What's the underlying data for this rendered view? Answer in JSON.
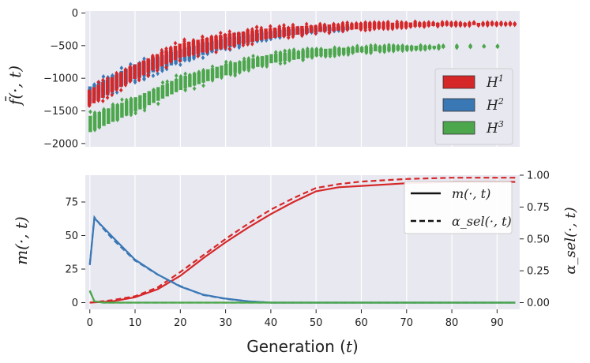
{
  "colors": {
    "h1": "#d62728",
    "h2": "#3a78b5",
    "h3": "#4ca64c",
    "panel_bg": "#e8e8f1",
    "grid": "#ffffff"
  },
  "chart_data": [
    {
      "type": "scatter",
      "subtype": "box-strip per generation",
      "ylabel": "f̄(·, t)",
      "ylim": [
        -2050,
        30
      ],
      "yticks": [
        0,
        -500,
        -1000,
        -1500,
        -2000
      ],
      "ytick_labels": [
        "0",
        "−500",
        "−1000",
        "−1500",
        "−2000"
      ],
      "xlim": [
        -1,
        95
      ],
      "legend": {
        "placement": "right",
        "entries": [
          "H1",
          "H2",
          "H3"
        ]
      },
      "series": [
        {
          "name": "H1",
          "label_main": "H",
          "label_sup": "1",
          "x": [
            0,
            10,
            20,
            30,
            40,
            50,
            60,
            70,
            80,
            90,
            94
          ],
          "median": [
            -1300,
            -900,
            -580,
            -420,
            -310,
            -240,
            -200,
            -180,
            -170,
            -165,
            -165
          ],
          "spread": [
            250,
            220,
            220,
            200,
            160,
            110,
            90,
            70,
            40,
            30,
            20
          ]
        },
        {
          "name": "H2",
          "label_main": "H",
          "label_sup": "2",
          "x": [
            0,
            10,
            20,
            30,
            40,
            50,
            57
          ],
          "median": [
            -1250,
            -900,
            -650,
            -460,
            -330,
            -260,
            -230
          ],
          "spread": [
            250,
            230,
            200,
            160,
            110,
            70,
            50
          ]
        },
        {
          "name": "H3",
          "label_main": "H",
          "label_sup": "3",
          "x": [
            0,
            10,
            20,
            30,
            40,
            50,
            60,
            70,
            78,
            85,
            90
          ],
          "median": [
            -1700,
            -1400,
            -1080,
            -870,
            -700,
            -610,
            -560,
            -530,
            -520,
            -510,
            -510
          ],
          "spread": [
            250,
            220,
            200,
            170,
            140,
            110,
            80,
            60,
            30,
            15,
            10
          ]
        }
      ]
    },
    {
      "type": "line",
      "xlabel": "Generation (t)",
      "xlabel_text": "Generation (",
      "xlabel_var": "t",
      "xlabel_close": ")",
      "ylabel": "m(·, t)",
      "ylabel_right": "α_sel(·, t)",
      "ylim": [
        -5,
        95
      ],
      "yticks": [
        0,
        25,
        50,
        75
      ],
      "ylim_right": [
        -0.0526,
        1.0
      ],
      "yticks_right": [
        "0.00",
        "0.25",
        "0.50",
        "0.75",
        "1.00"
      ],
      "xlim": [
        -1,
        95
      ],
      "xticks": [
        0,
        10,
        20,
        30,
        40,
        50,
        60,
        70,
        80,
        90
      ],
      "legend": {
        "placement": "top-right",
        "entries": [
          "m(·, t)",
          "α_sel(·, t)"
        ]
      },
      "series": [
        {
          "name": "H1 m",
          "style": "solid",
          "x": [
            0,
            5,
            10,
            15,
            20,
            25,
            30,
            35,
            40,
            45,
            50,
            55,
            60,
            70,
            80,
            94
          ],
          "values": [
            0,
            1,
            4,
            10,
            20,
            33,
            45,
            56,
            66,
            75,
            83,
            86,
            87,
            89,
            90,
            90
          ]
        },
        {
          "name": "H1 alpha",
          "style": "dashed",
          "x": [
            0,
            5,
            10,
            15,
            20,
            25,
            30,
            35,
            40,
            45,
            50,
            55,
            60,
            70,
            80,
            94
          ],
          "values": [
            0.0,
            0.02,
            0.05,
            0.12,
            0.24,
            0.37,
            0.5,
            0.62,
            0.73,
            0.82,
            0.9,
            0.93,
            0.95,
            0.97,
            0.98,
            0.98
          ]
        },
        {
          "name": "H2 m",
          "style": "solid",
          "x": [
            0,
            1,
            3,
            5,
            10,
            15,
            20,
            25,
            30,
            35,
            40,
            50,
            94
          ],
          "values": [
            28,
            63,
            56,
            49,
            32,
            21,
            12,
            6,
            3,
            1,
            0,
            0,
            0
          ]
        },
        {
          "name": "H2 alpha",
          "style": "dashed",
          "x": [
            0,
            1,
            3,
            5,
            10,
            15,
            20,
            25,
            30,
            35,
            40,
            50,
            94
          ],
          "values": [
            0.3,
            0.67,
            0.58,
            0.5,
            0.33,
            0.22,
            0.13,
            0.06,
            0.03,
            0.01,
            0.0,
            0.0,
            0.0
          ]
        },
        {
          "name": "H3 m",
          "style": "solid",
          "x": [
            0,
            1,
            3,
            94
          ],
          "values": [
            9,
            1,
            0,
            0
          ]
        },
        {
          "name": "H3 alpha",
          "style": "dashed",
          "x": [
            0,
            1,
            3,
            94
          ],
          "values": [
            0.09,
            0.01,
            0.0,
            0.0
          ]
        }
      ]
    }
  ]
}
